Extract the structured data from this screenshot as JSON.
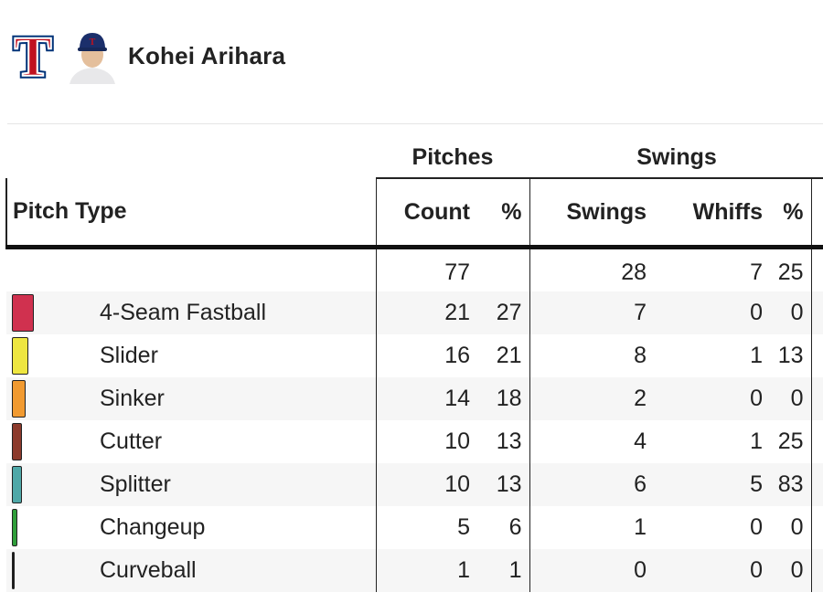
{
  "player": {
    "name": "Kohei Arihara",
    "team_logo_letter": "T",
    "team_colors": {
      "red": "#c0111f",
      "blue": "#003278"
    },
    "headshot_icon": "player-headshot-icon"
  },
  "table": {
    "group_headers": {
      "pitches": "Pitches",
      "swings": "Swings"
    },
    "column_headers": {
      "pitch_type": "Pitch Type",
      "count": "Count",
      "count_pct": "%",
      "swings": "Swings",
      "whiffs": "Whiffs",
      "whiff_pct": "%"
    },
    "totals": {
      "count": "77",
      "count_pct": "",
      "swings": "28",
      "whiffs": "7",
      "whiff_pct": "25"
    },
    "rows": [
      {
        "name": "4-Seam Fastball",
        "color": "#d0314f",
        "count": "21",
        "count_pct": "27",
        "swings": "7",
        "whiffs": "0",
        "whiff_pct": "0"
      },
      {
        "name": "Slider",
        "color": "#eee640",
        "count": "16",
        "count_pct": "21",
        "swings": "8",
        "whiffs": "1",
        "whiff_pct": "13"
      },
      {
        "name": "Sinker",
        "color": "#f19a30",
        "count": "14",
        "count_pct": "18",
        "swings": "2",
        "whiffs": "0",
        "whiff_pct": "0"
      },
      {
        "name": "Cutter",
        "color": "#8c3a2c",
        "count": "10",
        "count_pct": "13",
        "swings": "4",
        "whiffs": "1",
        "whiff_pct": "25"
      },
      {
        "name": "Splitter",
        "color": "#4fa8a8",
        "count": "10",
        "count_pct": "13",
        "swings": "6",
        "whiffs": "5",
        "whiff_pct": "83"
      },
      {
        "name": "Changeup",
        "color": "#2f9e3a",
        "count": "5",
        "count_pct": "6",
        "swings": "1",
        "whiffs": "0",
        "whiff_pct": "0"
      },
      {
        "name": "Curveball",
        "color": "#1a1a1a",
        "count": "1",
        "count_pct": "1",
        "swings": "0",
        "whiffs": "0",
        "whiff_pct": "0"
      }
    ]
  }
}
